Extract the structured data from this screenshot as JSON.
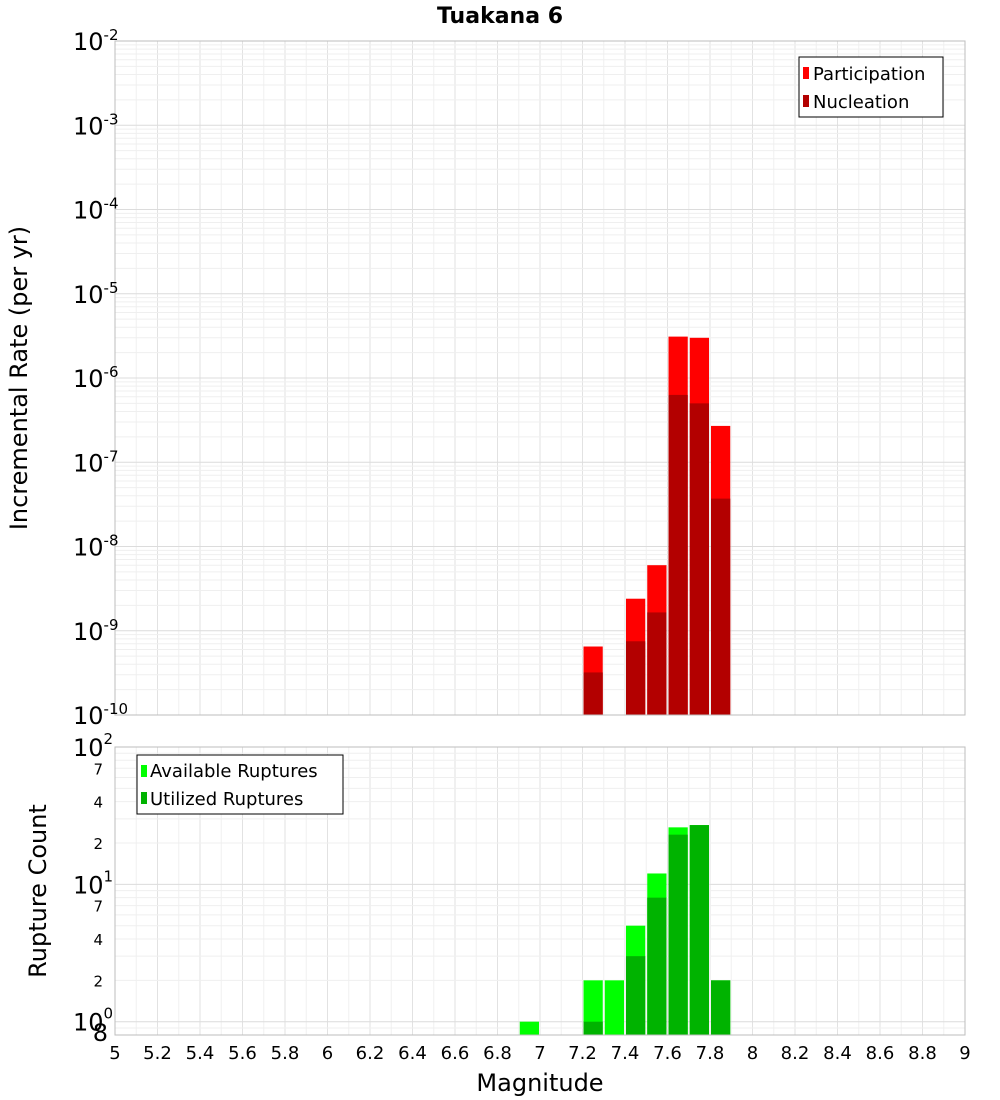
{
  "chart_data": [
    {
      "type": "bar",
      "title": "Tuakana 6",
      "xlabel": "",
      "ylabel": "Incremental Rate (per yr)",
      "yscale": "log",
      "xlim": [
        5,
        9
      ],
      "ylim": [
        1e-10,
        0.01
      ],
      "ytick_exponents": [
        "-2",
        "-3",
        "-4",
        "-5",
        "-6",
        "-7",
        "-8",
        "-9",
        "-10"
      ],
      "ytick_base": "10",
      "bar_width": 0.1,
      "legend": {
        "position": "top-right",
        "entries": [
          "Participation",
          "Nucleation"
        ]
      },
      "series": [
        {
          "name": "Participation",
          "color": "#ff0000",
          "x": [
            7.25,
            7.45,
            7.55,
            7.65,
            7.75,
            7.85
          ],
          "values": [
            6.5e-10,
            2.4e-09,
            6e-09,
            3.1e-06,
            3e-06,
            2.7e-07
          ]
        },
        {
          "name": "Nucleation",
          "color": "#b30000",
          "x": [
            7.25,
            7.45,
            7.55,
            7.65,
            7.75,
            7.85
          ],
          "values": [
            3.2e-10,
            7.5e-10,
            1.65e-09,
            6.3e-07,
            5e-07,
            3.7e-08
          ]
        }
      ]
    },
    {
      "type": "bar",
      "title": "",
      "xlabel": "Magnitude",
      "ylabel": "Rupture Count",
      "yscale": "log",
      "xlim": [
        5,
        9
      ],
      "ylim": [
        0.8,
        100
      ],
      "ytick_labels": [
        {
          "v": 100,
          "type": "major",
          "base": "10",
          "exp": "2"
        },
        {
          "v": 70,
          "type": "minor",
          "text": "7"
        },
        {
          "v": 40,
          "type": "minor",
          "text": "4"
        },
        {
          "v": 20,
          "type": "minor",
          "text": "2"
        },
        {
          "v": 10,
          "type": "major",
          "base": "10",
          "exp": "1"
        },
        {
          "v": 7,
          "type": "minor",
          "text": "7"
        },
        {
          "v": 4,
          "type": "minor",
          "text": "4"
        },
        {
          "v": 2,
          "type": "minor",
          "text": "2"
        },
        {
          "v": 1,
          "type": "major",
          "base": "10",
          "exp": "0"
        },
        {
          "v": 0.8,
          "type": "minor",
          "text": "8"
        }
      ],
      "xticks": [
        "5",
        "5.2",
        "5.4",
        "5.6",
        "5.8",
        "6",
        "6.2",
        "6.4",
        "6.6",
        "6.8",
        "7",
        "7.2",
        "7.4",
        "7.6",
        "7.8",
        "8",
        "8.2",
        "8.4",
        "8.6",
        "8.8",
        "9"
      ],
      "bar_width": 0.1,
      "legend": {
        "position": "top-left",
        "entries": [
          "Available Ruptures",
          "Utilized Ruptures"
        ]
      },
      "series": [
        {
          "name": "Available Ruptures",
          "color": "#00ff00",
          "x": [
            6.95,
            7.25,
            7.35,
            7.45,
            7.55,
            7.65,
            7.75,
            7.85
          ],
          "values": [
            1,
            2,
            2,
            5,
            12,
            26,
            27,
            2
          ]
        },
        {
          "name": "Utilized Ruptures",
          "color": "#00b300",
          "x": [
            7.25,
            7.45,
            7.55,
            7.65,
            7.75,
            7.85
          ],
          "values": [
            1,
            3,
            8,
            23,
            27,
            2
          ]
        }
      ]
    }
  ]
}
